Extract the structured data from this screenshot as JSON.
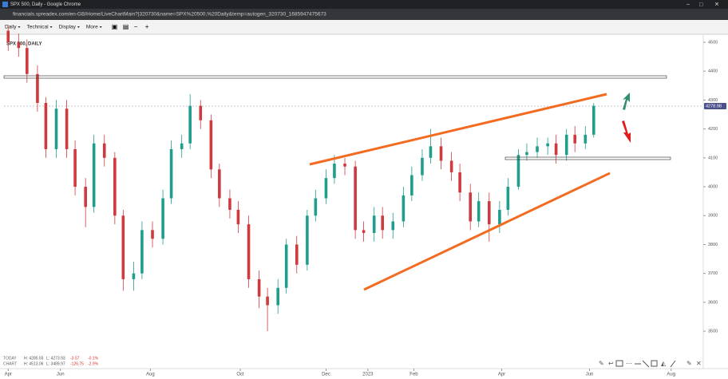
{
  "window_title": "SPX 500, Daily - Google Chrome",
  "url": "financials.spreadex.com/en-GB/Home/LiveChartMain?|320730&name=SPX%20500,%20Daily&temp=autogen_320730_1685947475673",
  "toolbar": [
    "Daily",
    "Technical",
    "Display",
    "More"
  ],
  "stats": [
    {
      "label": "TODAY",
      "high": "H: 4285.55",
      "low": "L: 4273.93",
      "change": "-3.57",
      "pct": "-0.1%"
    },
    {
      "label": "CHART",
      "high": "H: 4513.06",
      "low": "L: 3489.97",
      "change": "-126.75",
      "pct": "-2.9%"
    }
  ],
  "chart_data": {
    "type": "candlestick",
    "title": "SPX 500, DAILY",
    "x": [
      20,
      25,
      29,
      34,
      38,
      43,
      48,
      52,
      57,
      61,
      66,
      71,
      75,
      80,
      84,
      89,
      94,
      98,
      103,
      107,
      112,
      117,
      121,
      126,
      130,
      135,
      140,
      144,
      149,
      153,
      158,
      163,
      167,
      172,
      176,
      181,
      186,
      190,
      195,
      199,
      204,
      209,
      213,
      218,
      222,
      227,
      232,
      236,
      241,
      245,
      250,
      255,
      259,
      264,
      268,
      273,
      278,
      282,
      287,
      291,
      296,
      300
    ],
    "open": [
      4540,
      4500,
      4480,
      4390,
      4290,
      4130,
      4270,
      4130,
      4000,
      3930,
      4150,
      4100,
      3900,
      3680,
      3700,
      3850,
      3820,
      3960,
      4130,
      4150,
      4280,
      4230,
      4060,
      3960,
      3920,
      3870,
      3680,
      3620,
      3590,
      3650,
      3800,
      3730,
      3900,
      3960,
      4030,
      4080,
      4070,
      3850,
      3840,
      3900,
      3850,
      3880,
      3970,
      4040,
      4100,
      4140,
      4090,
      4050,
      3980,
      3880,
      3950,
      3870,
      3920,
      4000,
      4110,
      4120,
      4140,
      4150,
      4110,
      4180,
      4150,
      4180
    ],
    "high": [
      4560,
      4530,
      4510,
      4420,
      4310,
      4300,
      4300,
      4160,
      4030,
      4180,
      4180,
      4120,
      3920,
      3740,
      3880,
      3880,
      3990,
      4160,
      4180,
      4320,
      4300,
      4250,
      4080,
      3990,
      3950,
      3900,
      3710,
      3650,
      3680,
      3820,
      3830,
      3920,
      3990,
      4060,
      4110,
      4100,
      4090,
      3880,
      3930,
      3930,
      3910,
      4000,
      4070,
      4130,
      4200,
      4170,
      4120,
      4080,
      4010,
      3980,
      3980,
      3950,
      4030,
      4130,
      4150,
      4170,
      4170,
      4180,
      4200,
      4210,
      4210,
      4290
    ],
    "low": [
      4470,
      4450,
      4360,
      4260,
      4100,
      4100,
      4100,
      3970,
      3860,
      3910,
      4070,
      3870,
      3640,
      3640,
      3680,
      3790,
      3800,
      3940,
      4100,
      4130,
      4200,
      4030,
      3930,
      3890,
      3840,
      3650,
      3580,
      3500,
      3560,
      3630,
      3700,
      3710,
      3880,
      3940,
      4010,
      4040,
      3820,
      3810,
      3810,
      3820,
      3820,
      3860,
      3950,
      4020,
      4080,
      4060,
      4020,
      3950,
      3850,
      3860,
      3810,
      3840,
      3900,
      3990,
      4090,
      4100,
      4110,
      4080,
      4090,
      4120,
      4130,
      4170
    ],
    "close": [
      4500,
      4480,
      4390,
      4290,
      4130,
      4270,
      4130,
      4000,
      3930,
      4150,
      4100,
      3900,
      3680,
      3700,
      3850,
      3820,
      3960,
      4130,
      4150,
      4280,
      4230,
      4060,
      3960,
      3920,
      3870,
      3680,
      3620,
      3590,
      3650,
      3800,
      3730,
      3900,
      3960,
      4030,
      4080,
      4070,
      3850,
      3840,
      3900,
      3850,
      3880,
      3970,
      4040,
      4100,
      4140,
      4090,
      4050,
      3980,
      3880,
      3950,
      3870,
      3920,
      4000,
      4110,
      4120,
      4140,
      4150,
      4110,
      4180,
      4150,
      4180,
      4280
    ],
    "up_color": "#1f9e8c",
    "down_color": "#cf3a3e",
    "xlim": [
      18,
      352
    ],
    "xticks": [
      {
        "value": 20,
        "label": "Apr"
      },
      {
        "value": 45,
        "label": "Jun"
      },
      {
        "value": 88,
        "label": "Aug"
      },
      {
        "value": 131,
        "label": "Oct"
      },
      {
        "value": 172,
        "label": "Dec"
      },
      {
        "value": 192,
        "label": "2023"
      },
      {
        "value": 214,
        "label": "Feb"
      },
      {
        "value": 256,
        "label": "Apr"
      },
      {
        "value": 298,
        "label": "Jun"
      },
      {
        "value": 337,
        "label": "Aug"
      }
    ],
    "ylim": [
      3376,
      4522
    ],
    "yticks": [
      3500,
      3600,
      3700,
      3800,
      3900,
      4000,
      4100,
      4200,
      4300,
      4400,
      4500
    ],
    "last_price": 4278.98
  }
}
